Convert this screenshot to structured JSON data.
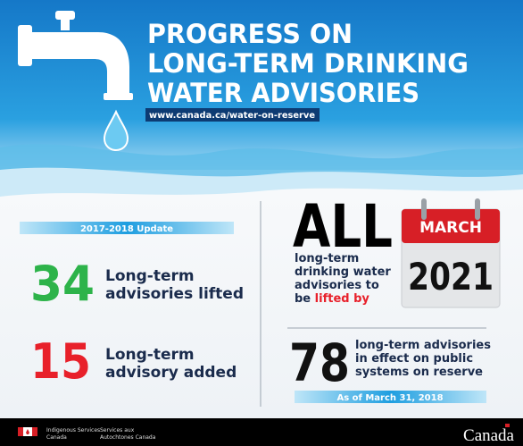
{
  "header": {
    "title_lines": [
      "PROGRESS ON",
      "LONG-TERM DRINKING",
      "WATER ADVISORIES"
    ],
    "url": "www.canada.ca/water-on-reserve"
  },
  "left": {
    "badge": "2017-2018 Update",
    "stats": [
      {
        "number": 34,
        "label_lines": [
          "Long-term",
          "advisories lifted"
        ]
      },
      {
        "number": 15,
        "label_lines": [
          "Long-term",
          "advisory added"
        ]
      }
    ]
  },
  "right": {
    "headline": "ALL",
    "text_lines": [
      "long-term",
      "drinking water",
      "advisories to"
    ],
    "last_line": "be",
    "highlight": "lifted by",
    "calendar": {
      "month": "MARCH",
      "year": 2021
    },
    "stat": {
      "number": 78,
      "label_lines": [
        "long-term advisories",
        "in effect on public",
        "systems on reserve"
      ]
    },
    "as_of": "As of March 31, 2018"
  },
  "footer": {
    "dept_en": [
      "Indigenous Services",
      "Canada"
    ],
    "dept_fr": [
      "Services aux",
      "Autochtones Canada"
    ],
    "wordmark": "Canada"
  }
}
